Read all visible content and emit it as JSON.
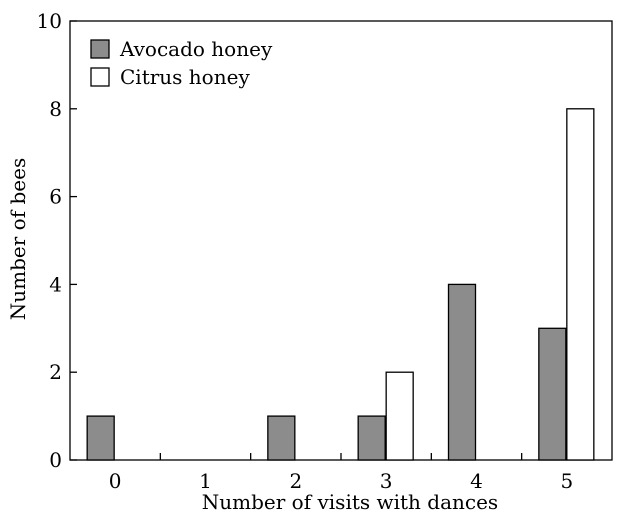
{
  "chart_data": {
    "type": "bar",
    "categories": [
      "0",
      "1",
      "2",
      "3",
      "4",
      "5"
    ],
    "series": [
      {
        "name": "Avocado honey",
        "values": [
          1,
          0,
          1,
          1,
          4,
          3
        ],
        "color": "#8c8c8c"
      },
      {
        "name": "Citrus honey",
        "values": [
          0,
          0,
          0,
          2,
          0,
          8
        ],
        "color": "#ffffff"
      }
    ],
    "xlabel": "Number of visits with dances",
    "ylabel": "Number of bees",
    "ylim": [
      0,
      10
    ],
    "yticks": [
      "0",
      "2",
      "4",
      "6",
      "8",
      "10"
    ],
    "legend_position": "top-left",
    "grid": false
  }
}
